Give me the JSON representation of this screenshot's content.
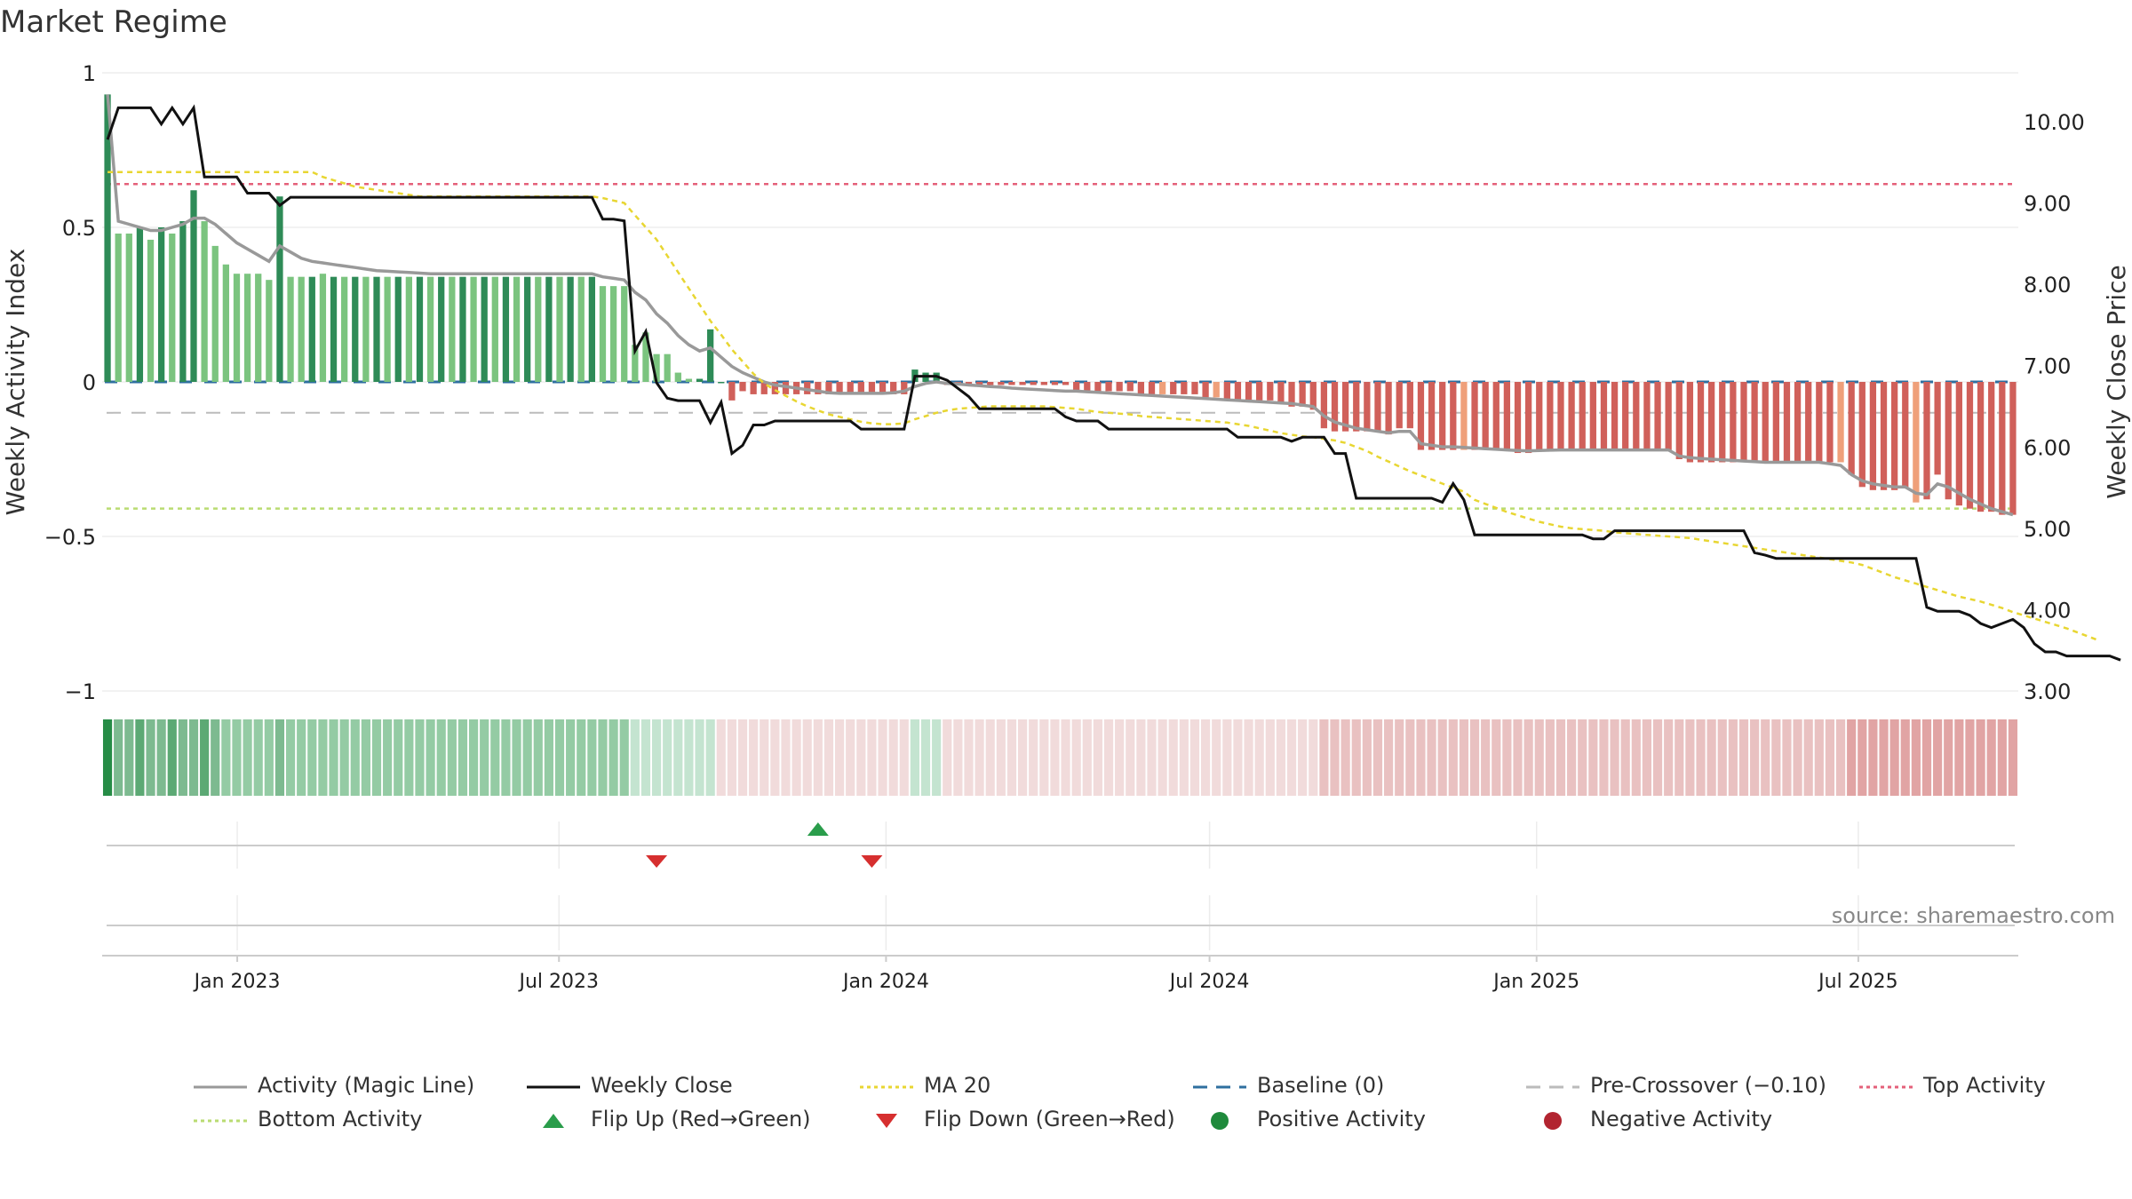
{
  "chart_data": {
    "title": "Market Regime",
    "source": "source: sharemaestro.com",
    "type": "bar",
    "left_axis": {
      "label": "Weekly Activity Index",
      "ticks": [
        "1",
        "0.5",
        "0",
        "−0.5",
        "−1"
      ],
      "range": [
        -1,
        1
      ]
    },
    "right_axis": {
      "label": "Weekly Close Price",
      "ticks": [
        "10.00",
        "9.00",
        "8.00",
        "7.00",
        "6.00",
        "5.00",
        "4.00",
        "3.00"
      ],
      "range": [
        3.0,
        10.6
      ]
    },
    "x_ticks": [
      "Jan 2023",
      "Jul 2023",
      "Jan 2024",
      "Jul 2024",
      "Jan 2025",
      "Jul 2025"
    ],
    "x_range": [
      "2022-10-17",
      "2025-09-29"
    ],
    "reference_lines": {
      "top_activity": 0.64,
      "bottom_activity": -0.41,
      "pre_crossover": -0.1,
      "baseline": 0
    },
    "activity_bars": [
      0.93,
      0.48,
      0.48,
      0.5,
      0.46,
      0.5,
      0.48,
      0.52,
      0.62,
      0.52,
      0.44,
      0.38,
      0.35,
      0.35,
      0.35,
      0.33,
      0.6,
      0.34,
      0.34,
      0.34,
      0.35,
      0.34,
      0.34,
      0.34,
      0.34,
      0.34,
      0.34,
      0.34,
      0.34,
      0.34,
      0.34,
      0.34,
      0.34,
      0.34,
      0.34,
      0.34,
      0.34,
      0.34,
      0.34,
      0.34,
      0.34,
      0.34,
      0.34,
      0.34,
      0.34,
      0.34,
      0.31,
      0.31,
      0.31,
      0.12,
      0.16,
      0.09,
      0.09,
      0.03,
      0.01,
      0.01,
      0.17,
      0.0,
      -0.06,
      -0.03,
      -0.04,
      -0.04,
      -0.04,
      -0.04,
      -0.04,
      -0.04,
      -0.04,
      -0.04,
      -0.04,
      -0.04,
      -0.04,
      -0.04,
      -0.04,
      -0.04,
      -0.04,
      0.04,
      0.03,
      0.03,
      -0.01,
      -0.01,
      -0.01,
      -0.01,
      -0.01,
      -0.01,
      -0.01,
      -0.01,
      -0.01,
      -0.01,
      -0.01,
      -0.01,
      -0.03,
      -0.03,
      -0.03,
      -0.03,
      -0.03,
      -0.03,
      -0.04,
      -0.04,
      -0.04,
      -0.04,
      -0.04,
      -0.04,
      -0.05,
      -0.05,
      -0.06,
      -0.06,
      -0.06,
      -0.06,
      -0.06,
      -0.07,
      -0.08,
      -0.08,
      -0.09,
      -0.15,
      -0.16,
      -0.16,
      -0.16,
      -0.16,
      -0.16,
      -0.17,
      -0.15,
      -0.15,
      -0.22,
      -0.22,
      -0.22,
      -0.22,
      -0.22,
      -0.22,
      -0.22,
      -0.22,
      -0.22,
      -0.23,
      -0.23,
      -0.22,
      -0.22,
      -0.22,
      -0.22,
      -0.22,
      -0.22,
      -0.22,
      -0.22,
      -0.22,
      -0.22,
      -0.22,
      -0.22,
      -0.22,
      -0.25,
      -0.26,
      -0.26,
      -0.26,
      -0.26,
      -0.26,
      -0.26,
      -0.26,
      -0.26,
      -0.26,
      -0.26,
      -0.26,
      -0.26,
      -0.26,
      -0.26,
      -0.26,
      -0.3,
      -0.34,
      -0.35,
      -0.35,
      -0.35,
      -0.34,
      -0.39,
      -0.38,
      -0.3,
      -0.38,
      -0.4,
      -0.41,
      -0.42,
      -0.42,
      -0.43,
      -0.43
    ],
    "magic_line": [
      0.93,
      0.52,
      0.51,
      0.5,
      0.49,
      0.49,
      0.5,
      0.51,
      0.53,
      0.53,
      0.51,
      0.48,
      0.45,
      0.43,
      0.41,
      0.39,
      0.44,
      0.42,
      0.4,
      0.39,
      0.385,
      0.38,
      0.375,
      0.37,
      0.365,
      0.36,
      0.358,
      0.356,
      0.354,
      0.352,
      0.35,
      0.35,
      0.35,
      0.35,
      0.35,
      0.35,
      0.35,
      0.35,
      0.35,
      0.35,
      0.35,
      0.35,
      0.35,
      0.35,
      0.35,
      0.35,
      0.34,
      0.335,
      0.33,
      0.29,
      0.265,
      0.22,
      0.19,
      0.15,
      0.12,
      0.1,
      0.11,
      0.08,
      0.05,
      0.03,
      0.015,
      0.0,
      -0.01,
      -0.015,
      -0.02,
      -0.025,
      -0.03,
      -0.035,
      -0.037,
      -0.037,
      -0.037,
      -0.037,
      -0.037,
      -0.035,
      -0.03,
      -0.015,
      -0.005,
      0.0,
      -0.005,
      -0.007,
      -0.01,
      -0.012,
      -0.015,
      -0.017,
      -0.02,
      -0.022,
      -0.024,
      -0.026,
      -0.028,
      -0.03,
      -0.03,
      -0.032,
      -0.034,
      -0.036,
      -0.038,
      -0.04,
      -0.042,
      -0.044,
      -0.046,
      -0.048,
      -0.05,
      -0.052,
      -0.054,
      -0.056,
      -0.058,
      -0.06,
      -0.062,
      -0.064,
      -0.066,
      -0.068,
      -0.07,
      -0.075,
      -0.08,
      -0.11,
      -0.13,
      -0.14,
      -0.15,
      -0.155,
      -0.16,
      -0.165,
      -0.16,
      -0.16,
      -0.2,
      -0.205,
      -0.21,
      -0.21,
      -0.212,
      -0.214,
      -0.216,
      -0.218,
      -0.22,
      -0.222,
      -0.223,
      -0.222,
      -0.221,
      -0.22,
      -0.22,
      -0.22,
      -0.22,
      -0.22,
      -0.22,
      -0.22,
      -0.22,
      -0.22,
      -0.22,
      -0.22,
      -0.24,
      -0.245,
      -0.248,
      -0.25,
      -0.252,
      -0.254,
      -0.256,
      -0.258,
      -0.26,
      -0.26,
      -0.26,
      -0.26,
      -0.26,
      -0.26,
      -0.265,
      -0.27,
      -0.3,
      -0.32,
      -0.33,
      -0.335,
      -0.34,
      -0.34,
      -0.36,
      -0.365,
      -0.33,
      -0.34,
      -0.36,
      -0.38,
      -0.395,
      -0.41,
      -0.42,
      -0.43
    ],
    "weekly_close": [
      9.78,
      10.17,
      10.17,
      10.17,
      10.17,
      9.97,
      10.17,
      9.97,
      10.17,
      9.32,
      9.32,
      9.32,
      9.32,
      9.12,
      9.12,
      9.12,
      8.97,
      9.07,
      9.07,
      9.07,
      9.07,
      9.07,
      9.07,
      9.07,
      9.07,
      9.07,
      9.07,
      9.07,
      9.07,
      9.07,
      9.07,
      9.07,
      9.07,
      9.07,
      9.07,
      9.07,
      9.07,
      9.07,
      9.07,
      9.07,
      9.07,
      9.07,
      9.07,
      9.07,
      9.07,
      9.07,
      8.8,
      8.8,
      8.78,
      7.18,
      7.42,
      6.79,
      6.6,
      6.57,
      6.57,
      6.57,
      6.3,
      6.55,
      5.92,
      6.02,
      6.27,
      6.27,
      6.32,
      6.32,
      6.32,
      6.32,
      6.32,
      6.32,
      6.32,
      6.32,
      6.22,
      6.22,
      6.22,
      6.22,
      6.22,
      6.87,
      6.87,
      6.87,
      6.82,
      6.72,
      6.62,
      6.47,
      6.47,
      6.47,
      6.47,
      6.47,
      6.47,
      6.47,
      6.47,
      6.37,
      6.32,
      6.32,
      6.32,
      6.22,
      6.22,
      6.22,
      6.22,
      6.22,
      6.22,
      6.22,
      6.22,
      6.22,
      6.22,
      6.22,
      6.22,
      6.12,
      6.12,
      6.12,
      6.12,
      6.12,
      6.07,
      6.12,
      6.12,
      6.12,
      5.92,
      5.92,
      5.37,
      5.37,
      5.37,
      5.37,
      5.37,
      5.37,
      5.37,
      5.37,
      5.32,
      5.55,
      5.35,
      4.92,
      4.92,
      4.92,
      4.92,
      4.92,
      4.92,
      4.92,
      4.92,
      4.92,
      4.92,
      4.92,
      4.87,
      4.87,
      4.97,
      4.97,
      4.97,
      4.97,
      4.97,
      4.97,
      4.97,
      4.97,
      4.97,
      4.97,
      4.97,
      4.97,
      4.97,
      4.7,
      4.67,
      4.63,
      4.63,
      4.63,
      4.63,
      4.63,
      4.63,
      4.63,
      4.63,
      4.63,
      4.63,
      4.63,
      4.63,
      4.63,
      4.63,
      4.03,
      3.98,
      3.98,
      3.98,
      3.93,
      3.83,
      3.78,
      3.83,
      3.88,
      3.78,
      3.58,
      3.48,
      3.48,
      3.43,
      3.43,
      3.43,
      3.43,
      3.43,
      3.38
    ],
    "ma20": [
      9.38,
      9.38,
      9.38,
      9.38,
      9.38,
      9.38,
      9.38,
      9.38,
      9.38,
      9.38,
      9.38,
      9.38,
      9.38,
      9.38,
      9.38,
      9.38,
      9.38,
      9.38,
      9.38,
      9.38,
      9.32,
      9.28,
      9.24,
      9.2,
      9.18,
      9.16,
      9.14,
      9.12,
      9.1,
      9.08,
      9.08,
      9.08,
      9.08,
      9.08,
      9.08,
      9.08,
      9.08,
      9.08,
      9.08,
      9.08,
      9.08,
      9.08,
      9.08,
      9.08,
      9.08,
      9.08,
      9.06,
      9.03,
      9.0,
      8.85,
      8.7,
      8.55,
      8.35,
      8.15,
      7.95,
      7.75,
      7.55,
      7.38,
      7.2,
      7.05,
      6.9,
      6.78,
      6.7,
      6.63,
      6.56,
      6.5,
      6.45,
      6.4,
      6.37,
      6.34,
      6.31,
      6.29,
      6.28,
      6.28,
      6.29,
      6.34,
      6.38,
      6.42,
      6.45,
      6.47,
      6.48,
      6.49,
      6.5,
      6.5,
      6.5,
      6.5,
      6.5,
      6.5,
      6.49,
      6.48,
      6.47,
      6.45,
      6.43,
      6.42,
      6.41,
      6.4,
      6.38,
      6.37,
      6.36,
      6.35,
      6.34,
      6.33,
      6.32,
      6.31,
      6.3,
      6.28,
      6.26,
      6.23,
      6.2,
      6.17,
      6.15,
      6.13,
      6.12,
      6.1,
      6.08,
      6.05,
      6.0,
      5.95,
      5.88,
      5.82,
      5.76,
      5.7,
      5.65,
      5.6,
      5.55,
      5.5,
      5.45,
      5.35,
      5.3,
      5.25,
      5.2,
      5.16,
      5.12,
      5.08,
      5.05,
      5.02,
      5.0,
      4.99,
      4.98,
      4.97,
      4.95,
      4.94,
      4.93,
      4.92,
      4.91,
      4.9,
      4.89,
      4.88,
      4.86,
      4.84,
      4.82,
      4.8,
      4.78,
      4.76,
      4.74,
      4.72,
      4.7,
      4.68,
      4.66,
      4.64,
      4.62,
      4.6,
      4.58,
      4.55,
      4.5,
      4.45,
      4.4,
      4.36,
      4.32,
      4.28,
      4.24,
      4.2,
      4.16,
      4.13,
      4.1,
      4.06,
      4.02,
      3.97,
      3.93,
      3.89,
      3.85,
      3.81,
      3.77,
      3.72,
      3.67,
      3.62
    ],
    "flip_up_weeks": [
      66
    ],
    "flip_down_weeks": [
      51,
      71
    ],
    "legend": [
      "Activity (Magic Line)",
      "Weekly Close",
      "MA 20",
      "Baseline (0)",
      "Pre-Crossover (−0.10)",
      "Top Activity",
      "Bottom Activity",
      "Flip Up (Red→Green)",
      "Flip Down (Green→Red)",
      "Positive Activity",
      "Negative Activity"
    ],
    "colors": {
      "magic_line": "#999999",
      "weekly_close": "#111111",
      "ma20": "#e8d632",
      "baseline": "#2f6f9f",
      "pre_crossover": "#bbbbbb",
      "top_activity": "#e4607a",
      "bottom_activity": "#b9dc72",
      "flip_up": "#2a9d4b",
      "flip_down": "#d62f2f",
      "positive": "#1f8a3c",
      "negative": "#b22430",
      "bar_green_dark": "#2e8b57",
      "bar_green_light": "#7bc47f",
      "bar_red": "#d0605a",
      "bar_orange": "#efa07a"
    }
  }
}
